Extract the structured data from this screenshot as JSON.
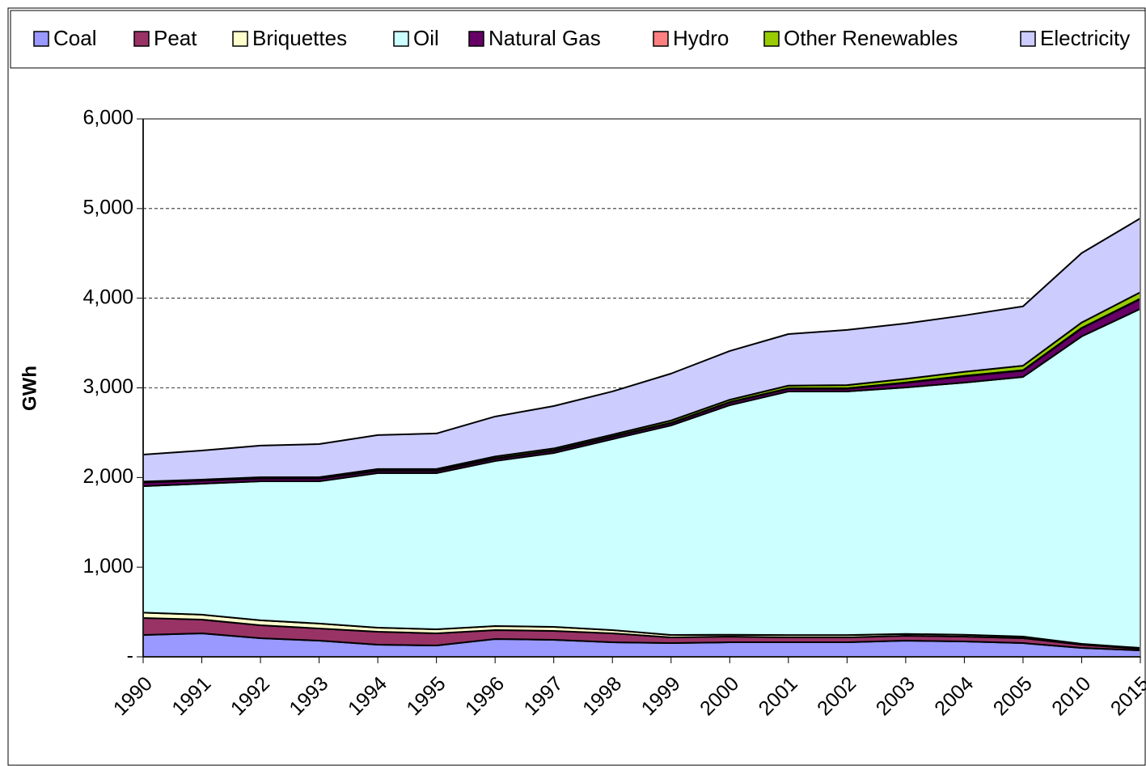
{
  "chart_data": {
    "type": "stacked-area",
    "y_axis_label": "GWh",
    "categories": [
      "1990",
      "1991",
      "1992",
      "1993",
      "1994",
      "1995",
      "1996",
      "1997",
      "1998",
      "1999",
      "2000",
      "2001",
      "2002",
      "2003",
      "2004",
      "2005",
      "2010",
      "2015"
    ],
    "series": [
      {
        "name": "Coal",
        "color": "#9999ff",
        "values": [
          244,
          262,
          208,
          180,
          135,
          126,
          199,
          190,
          162,
          153,
          162,
          162,
          162,
          180,
          171,
          153,
          99,
          72
        ]
      },
      {
        "name": "Peat",
        "color": "#993366",
        "values": [
          189,
          153,
          144,
          136,
          145,
          136,
          99,
          99,
          100,
          64,
          64,
          55,
          55,
          55,
          55,
          55,
          36,
          18
        ]
      },
      {
        "name": "Briquettes",
        "color": "#ffffcc",
        "values": [
          60,
          55,
          55,
          55,
          45,
          45,
          45,
          45,
          36,
          27,
          20,
          25,
          25,
          20,
          20,
          18,
          9,
          9
        ]
      },
      {
        "name": "Oil",
        "color": "#ccffff",
        "values": [
          1411,
          1461,
          1551,
          1587,
          1724,
          1742,
          1841,
          1940,
          2130,
          2337,
          2561,
          2718,
          2718,
          2750,
          2813,
          2896,
          3430,
          3782
        ]
      },
      {
        "name": "Natural Gas",
        "color": "#660066",
        "values": [
          40,
          35,
          30,
          30,
          25,
          25,
          25,
          25,
          25,
          25,
          30,
          30,
          30,
          50,
          70,
          70,
          90,
          110
        ]
      },
      {
        "name": "Hydro",
        "color": "#ff8080",
        "values": [
          5,
          5,
          5,
          5,
          5,
          5,
          5,
          5,
          5,
          5,
          5,
          5,
          5,
          5,
          5,
          5,
          5,
          5
        ]
      },
      {
        "name": "Other Renewables",
        "color": "#99cc00",
        "values": [
          5,
          5,
          10,
          10,
          15,
          15,
          20,
          20,
          20,
          25,
          25,
          30,
          35,
          40,
          45,
          50,
          60,
          70
        ]
      },
      {
        "name": "Electricity",
        "color": "#ccccff",
        "values": [
          302,
          325,
          353,
          370,
          379,
          397,
          446,
          473,
          482,
          523,
          544,
          575,
          616,
          618,
          629,
          662,
          774,
          825
        ]
      }
    ],
    "ylim": [
      0,
      6000
    ],
    "yticks": [
      {
        "value": 0,
        "label": "-"
      },
      {
        "value": 1000,
        "label": "1,000"
      },
      {
        "value": 2000,
        "label": "2,000"
      },
      {
        "value": 3000,
        "label": "3,000"
      },
      {
        "value": 4000,
        "label": "4,000"
      },
      {
        "value": 5000,
        "label": "5,000"
      },
      {
        "value": 6000,
        "label": "6,000"
      }
    ],
    "grid": true,
    "legend": "top"
  }
}
